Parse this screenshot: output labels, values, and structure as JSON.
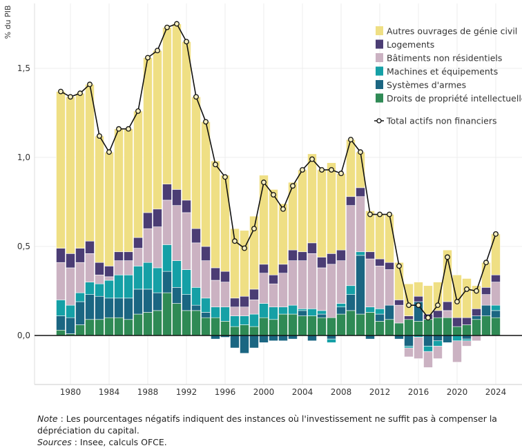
{
  "chart_data": {
    "type": "bar",
    "stacked": true,
    "ylabel": "% du PIB",
    "ylim": [
      -0.275,
      1.86
    ],
    "yticks": [
      0,
      0.5,
      1,
      1.5
    ],
    "ytick_labels": [
      "0,0",
      "0,5",
      "1,0",
      "1,5"
    ],
    "xtick_labels": [
      "1980",
      "1984",
      "1988",
      "1992",
      "1996",
      "2000",
      "2004",
      "2008",
      "2012",
      "2016",
      "2020",
      "2024"
    ],
    "grid": true,
    "legend_position": "top-right",
    "categories": [
      1979,
      1980,
      1981,
      1982,
      1983,
      1984,
      1985,
      1986,
      1987,
      1988,
      1989,
      1990,
      1991,
      1992,
      1993,
      1994,
      1995,
      1996,
      1997,
      1998,
      1999,
      2000,
      2001,
      2002,
      2003,
      2004,
      2005,
      2006,
      2007,
      2008,
      2009,
      2010,
      2011,
      2012,
      2013,
      2014,
      2015,
      2016,
      2017,
      2018,
      2019,
      2020,
      2021,
      2022,
      2023,
      2024
    ],
    "series": [
      {
        "name": "Droits de propriété intellectuelle",
        "color": "#2f8a55",
        "values": [
          0.03,
          0.01,
          0.06,
          0.09,
          0.09,
          0.1,
          0.1,
          0.09,
          0.12,
          0.13,
          0.14,
          0.24,
          0.18,
          0.14,
          0.14,
          0.1,
          0.1,
          0.08,
          0.05,
          0.06,
          0.05,
          0.1,
          0.09,
          0.12,
          0.12,
          0.11,
          0.11,
          0.1,
          0.1,
          0.12,
          0.14,
          0.12,
          0.13,
          0.08,
          0.09,
          0.07,
          0.09,
          0.08,
          0.09,
          0.1,
          0.1,
          0.05,
          0.06,
          0.09,
          0.11,
          0.1
        ]
      },
      {
        "name": "Systèmes d'armes",
        "color": "#1b6682",
        "values": [
          0.08,
          0.09,
          0.13,
          0.14,
          0.13,
          0.11,
          0.11,
          0.12,
          0.14,
          0.13,
          0.1,
          0.12,
          0.09,
          0.09,
          0.03,
          0.03,
          -0.02,
          -0.01,
          -0.07,
          -0.1,
          -0.07,
          -0.04,
          -0.03,
          -0.03,
          -0.02,
          0.03,
          -0.03,
          0.02,
          -0.02,
          0.04,
          0.09,
          0.33,
          -0.02,
          0.04,
          0.08,
          -0.02,
          -0.06,
          0.11,
          -0.06,
          -0.03,
          -0.04,
          0,
          -0.02,
          0.02,
          0.06,
          0.04
        ]
      },
      {
        "name": "Machines et équipements",
        "color": "#15a0a6",
        "values": [
          0.09,
          0.07,
          0.05,
          0.07,
          0.07,
          0.1,
          0.13,
          0.13,
          0.13,
          0.15,
          0.14,
          0.15,
          0.15,
          0.14,
          0.1,
          0.08,
          0.06,
          0.08,
          0.06,
          0.05,
          0.07,
          0.08,
          0.07,
          0.04,
          0.05,
          0.01,
          0.04,
          0.02,
          -0.02,
          0.02,
          0.05,
          0.02,
          0.03,
          0.03,
          0,
          0,
          -0.01,
          -0.01,
          -0.03,
          -0.03,
          0,
          -0.03,
          -0.01,
          0,
          0,
          0.03
        ]
      },
      {
        "name": "Bâtiments non résidentiels",
        "color": "#cbb2c2",
        "values": [
          0.21,
          0.21,
          0.17,
          0.16,
          0.05,
          0.02,
          0.08,
          0.08,
          0.1,
          0.19,
          0.23,
          0.25,
          0.31,
          0.32,
          0.25,
          0.21,
          0.15,
          0.14,
          0.05,
          0.05,
          0.08,
          0.17,
          0.13,
          0.19,
          0.25,
          0.27,
          0.31,
          0.24,
          0.3,
          0.24,
          0.45,
          0.31,
          0.27,
          0.24,
          0.2,
          0.1,
          -0.05,
          -0.12,
          -0.09,
          -0.07,
          0.04,
          -0.12,
          -0.03,
          -0.03,
          0.06,
          0.13
        ]
      },
      {
        "name": "Logements",
        "color": "#4b3d74",
        "values": [
          0.08,
          0.08,
          0.08,
          0.07,
          0.07,
          0.06,
          0.05,
          0.05,
          0.06,
          0.09,
          0.1,
          0.09,
          0.09,
          0.07,
          0.08,
          0.08,
          0.07,
          0.06,
          0.05,
          0.06,
          0.06,
          0.05,
          0.05,
          0.05,
          0.06,
          0.05,
          0.06,
          0.06,
          0.06,
          0.06,
          0.05,
          0.05,
          0.04,
          0.04,
          0.04,
          0.03,
          0.02,
          0.03,
          0.03,
          0.04,
          0.05,
          0.05,
          0.04,
          0.04,
          0.04,
          0.04
        ]
      },
      {
        "name": "Autres ouvrages de génie civil",
        "color": "#efdf84",
        "values": [
          0.88,
          0.88,
          0.87,
          0.88,
          0.71,
          0.64,
          0.69,
          0.69,
          0.71,
          0.87,
          0.89,
          0.88,
          0.93,
          0.89,
          0.74,
          0.7,
          0.6,
          0.54,
          0.39,
          0.37,
          0.41,
          0.5,
          0.48,
          0.34,
          0.38,
          0.46,
          0.5,
          0.49,
          0.51,
          0.43,
          0.32,
          0.2,
          0.23,
          0.25,
          0.27,
          0.21,
          0.18,
          0.08,
          0.16,
          0.16,
          0.29,
          0.24,
          0.22,
          0.13,
          0.14,
          0.23
        ]
      }
    ],
    "line": {
      "name": "Total actifs non financiers",
      "color": "#111111",
      "values": [
        1.37,
        1.34,
        1.36,
        1.41,
        1.12,
        1.03,
        1.16,
        1.16,
        1.26,
        1.56,
        1.6,
        1.73,
        1.75,
        1.65,
        1.34,
        1.2,
        0.96,
        0.89,
        0.53,
        0.49,
        0.6,
        0.86,
        0.79,
        0.71,
        0.84,
        0.93,
        0.99,
        0.93,
        0.93,
        0.91,
        1.1,
        1.03,
        0.68,
        0.68,
        0.68,
        0.39,
        0.17,
        0.17,
        0.1,
        0.17,
        0.44,
        0.19,
        0.26,
        0.25,
        0.41,
        0.57
      ]
    },
    "legend_order": [
      "Autres ouvrages de génie civil",
      "Logements",
      "Bâtiments non résidentiels",
      "Machines et équipements",
      "Systèmes d'armes",
      "Droits de propriété intellectuelle",
      "Total actifs non financiers"
    ]
  },
  "note": {
    "note_label": "Note",
    "note_text": " : Les pourcentages négatifs indiquent des instances où l'investissement ne suffit pas à compenser la dépréciation du capital.",
    "sources_label": "Sources",
    "sources_text": " : Insee, calculs OFCE."
  }
}
